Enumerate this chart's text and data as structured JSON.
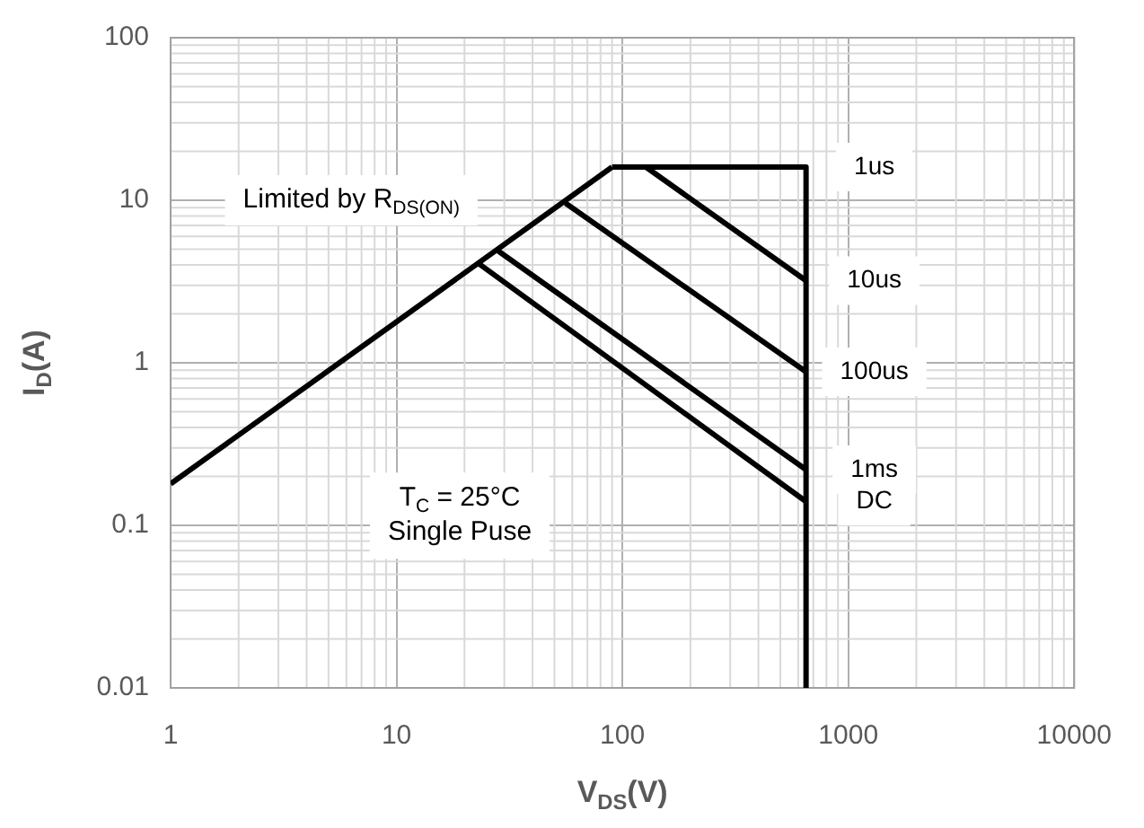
{
  "chart_data": {
    "type": "line",
    "xlabel": "V$_{DS}$(V)",
    "ylabel": "I$_{D}$(A)",
    "log": "xy",
    "grid": true,
    "legend": false,
    "marker": "none",
    "line_style": "solid",
    "xlim": [
      1,
      10000
    ],
    "xticks": [
      1,
      10,
      100,
      1000,
      10000
    ],
    "ylim": [
      0.01,
      100
    ],
    "yticks": [
      0.01,
      0.1,
      1,
      10,
      100
    ],
    "series": [
      {
        "color": "#000000",
        "x": [
          1,
          90
        ],
        "values": [
          0.18,
          16
        ]
      },
      {
        "name": "1us",
        "color": "#000000",
        "x": [
          90,
          650
        ],
        "values": [
          16,
          16
        ]
      },
      {
        "name": "10us",
        "color": "#000000",
        "x": [
          127,
          650
        ],
        "values": [
          16,
          3.2
        ]
      },
      {
        "name": "100us",
        "color": "#000000",
        "x": [
          56,
          650
        ],
        "values": [
          9.6,
          0.88
        ]
      },
      {
        "name": "1ms",
        "color": "#000000",
        "x": [
          27.5,
          650
        ],
        "values": [
          5,
          0.22
        ]
      },
      {
        "name": "DC",
        "color": "#000000",
        "x": [
          23,
          650
        ],
        "values": [
          4.1,
          0.14
        ]
      },
      {
        "color": "#000000",
        "x": [
          650,
          650
        ],
        "values": [
          16,
          0.01
        ]
      }
    ],
    "annotations": [
      "Limited by R$_{DS(ON)}$",
      "T$_{C}$ = 25°C",
      "Single Puse"
    ]
  }
}
